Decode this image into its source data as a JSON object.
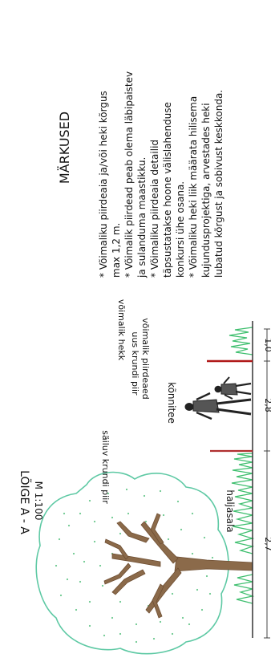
{
  "section": {
    "title": "LÕIGE A - A",
    "scale": "M 1:100"
  },
  "labels": {
    "existing_fence": "säiluv krundi piir",
    "walkway": "kõnnitee",
    "new_fence_line1": "uus krundi piir",
    "new_fence_line2": "võimalik piirdeaed",
    "hedge": "võimalik hekk",
    "lawn": "haljasala"
  },
  "dimensions": [
    "2,7",
    "2,8",
    "1,0"
  ],
  "notes": {
    "heading": "MÄRKUSED",
    "lines": [
      "* Võimaliku piirdeaia ja/või heki kõrgus",
      "max 1,2 m.",
      "* Võimalik piirdead peab olema läbipaistev",
      "ja sulanduma maastikku.",
      "* Võimaliku piirdeaia detailid",
      "täpsustatakse hoone välislahenduse",
      "konkursi ühe osana.",
      "* Võimaliku heki liik määrata hilisema",
      "kujundusprojektiga, arvestades heki",
      "lubatud kõrgust ja sobivust keskkonda."
    ]
  },
  "colors": {
    "tree_crown": "#5ec9a4",
    "trunk": "#8b6a4a",
    "grass": "#3fbf6f",
    "existing_fence": "#b03030",
    "new_fence": "#b01818",
    "ground": "#333333"
  }
}
